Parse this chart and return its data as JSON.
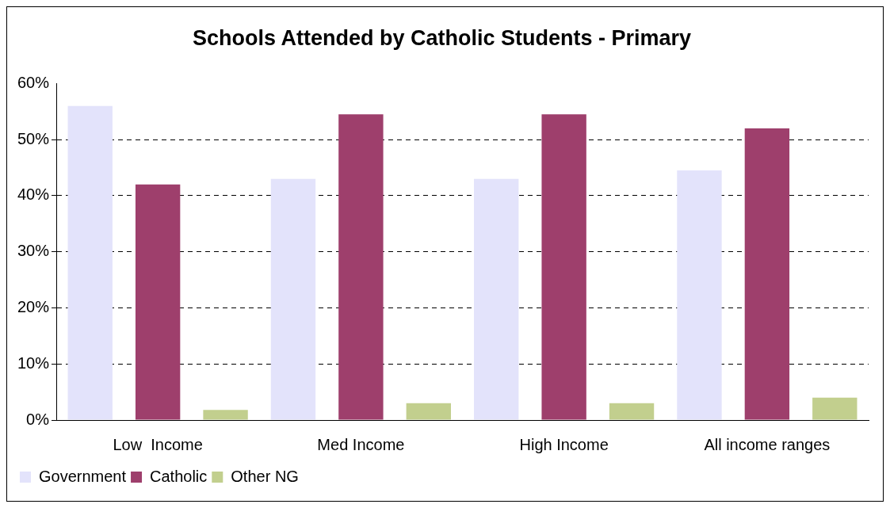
{
  "chart_data": {
    "type": "bar",
    "title": "Schools Attended by Catholic Students - Primary",
    "categories": [
      "Low  Income",
      "Med Income",
      "High Income",
      "All income ranges"
    ],
    "series": [
      {
        "name": "Government",
        "color": "#e3e3fb",
        "values": [
          0.56,
          0.43,
          0.43,
          0.445
        ]
      },
      {
        "name": "Catholic",
        "color": "#9e3f6c",
        "values": [
          0.42,
          0.545,
          0.545,
          0.52
        ]
      },
      {
        "name": "Other NG",
        "color": "#c2cf8e",
        "values": [
          0.018,
          0.03,
          0.03,
          0.04
        ]
      }
    ],
    "ylim": [
      0,
      0.6
    ],
    "yticks": [
      {
        "value": 0,
        "label": "0%"
      },
      {
        "value": 0.1,
        "label": "10%"
      },
      {
        "value": 0.2,
        "label": "20%"
      },
      {
        "value": 0.3,
        "label": "30%"
      },
      {
        "value": 0.4,
        "label": "40%"
      },
      {
        "value": 0.5,
        "label": "50%"
      },
      {
        "value": 0.6,
        "label": "60%"
      }
    ],
    "grid": "y",
    "legend": "bottom left"
  }
}
